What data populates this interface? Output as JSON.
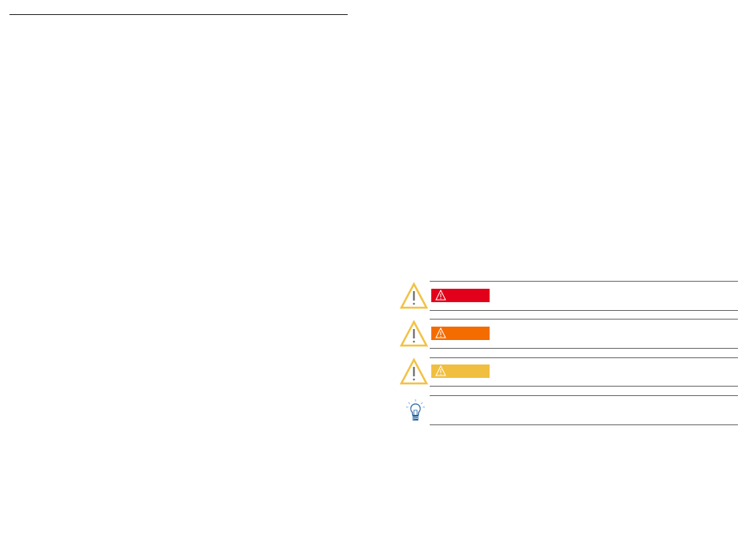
{
  "notices": [
    {
      "type": "danger",
      "icon": "warning-triangle-icon",
      "bar_color": "#e2001a"
    },
    {
      "type": "warning",
      "icon": "warning-triangle-icon",
      "bar_color": "#f46c00"
    },
    {
      "type": "caution",
      "icon": "warning-triangle-icon",
      "bar_color": "#f1bf3f"
    },
    {
      "type": "tip",
      "icon": "lightbulb-icon"
    }
  ],
  "colors": {
    "triangle": "#f3c244",
    "rule": "#666666",
    "bulb": "#1f5f9e"
  }
}
